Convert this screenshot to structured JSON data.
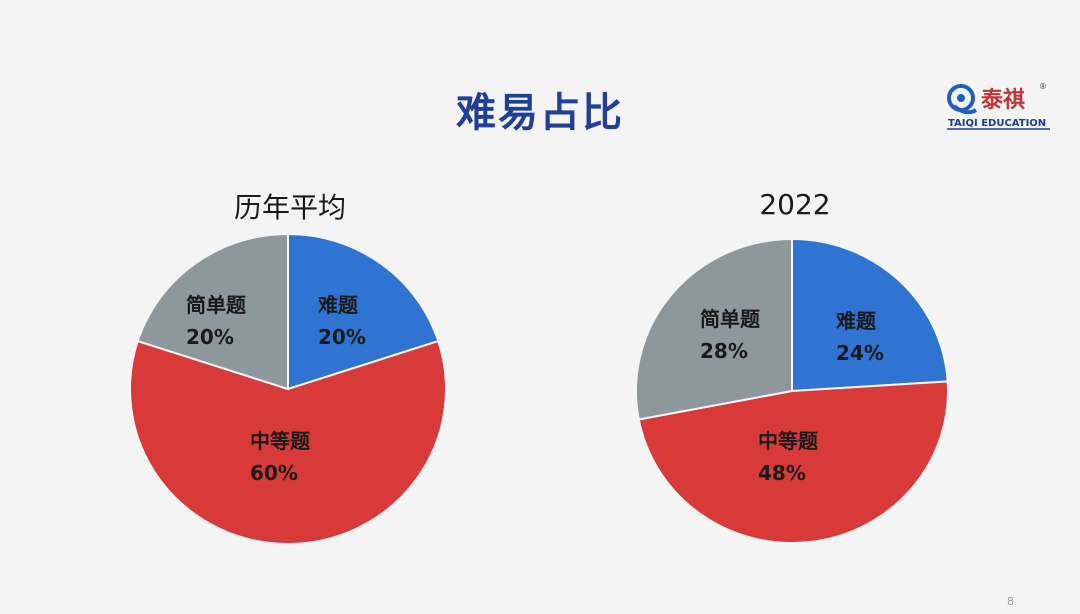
{
  "slide": {
    "title": "难易占比",
    "page_number": "8"
  },
  "logo": {
    "brand": "泰祺",
    "sub": "TAIQI EDUCATION",
    "registered": "®"
  },
  "colors": {
    "hard": "#2f74d3",
    "medium": "#d73a38",
    "easy": "#8e979c",
    "title": "#1f3f9b"
  },
  "chart_data": [
    {
      "type": "pie",
      "title": "历年平均",
      "slices": [
        {
          "label": "难题",
          "value": 20,
          "text": "20%",
          "color": "#2f74d3"
        },
        {
          "label": "中等题",
          "value": 60,
          "text": "60%",
          "color": "#d73a38"
        },
        {
          "label": "简单题",
          "value": 20,
          "text": "20%",
          "color": "#8e979c"
        }
      ]
    },
    {
      "type": "pie",
      "title": "2022",
      "slices": [
        {
          "label": "难题",
          "value": 24,
          "text": "24%",
          "color": "#2f74d3"
        },
        {
          "label": "中等题",
          "value": 48,
          "text": "48%",
          "color": "#d73a38"
        },
        {
          "label": "简单题",
          "value": 28,
          "text": "28%",
          "color": "#8e979c"
        }
      ]
    }
  ]
}
